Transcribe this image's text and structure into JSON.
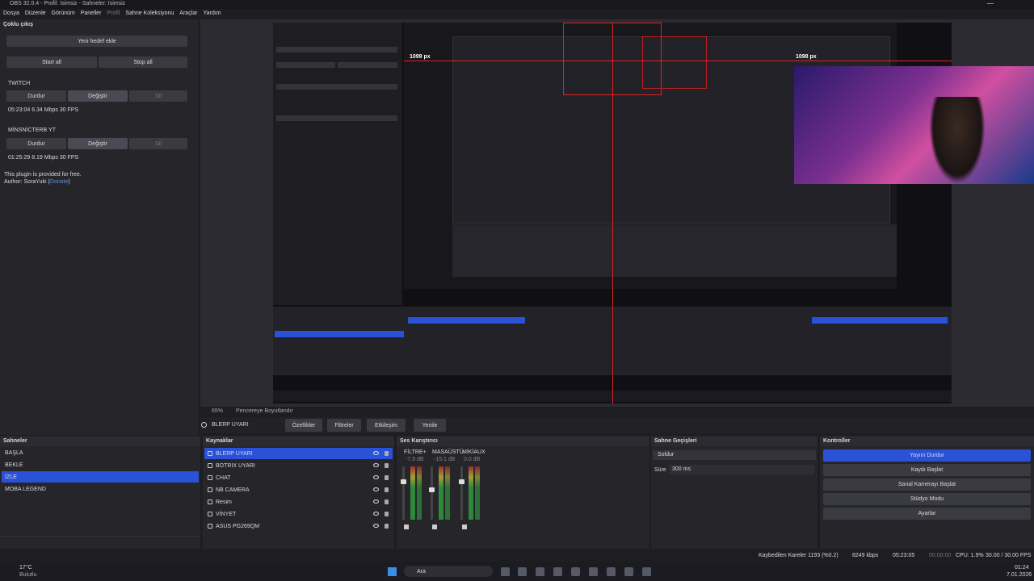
{
  "window": {
    "title": "OBS 32.0.4 - Profil: İsimsiz - Sahneler: İsimsiz"
  },
  "menu": [
    "Dosya",
    "Düzenle",
    "Görünüm",
    "Paneller",
    "Profil",
    "Sahne Koleksiyonu",
    "Araçlar",
    "Yardım"
  ],
  "multi_output": {
    "title": "Çoklu çıkış",
    "add_button": "Yeni hedef ekle",
    "start_all": "Start all",
    "stop_all": "Stop all",
    "targets": [
      {
        "name": "TWITCH",
        "buttons": [
          "Durdur",
          "Değiştir",
          "Sil"
        ],
        "status": "05:23:04 6.34 Mbps 30 FPS"
      },
      {
        "name": "MİNSNİCTERB YT",
        "buttons": [
          "Durdur",
          "Değiştir",
          "Sil"
        ],
        "status": "01:25:29 8.19 Mbps 30 FPS"
      }
    ],
    "note": "This plugin is provided for free.",
    "author": "Author: SoraYuki (",
    "donate": "Donate",
    "author_end": ")"
  },
  "preview": {
    "guides": [
      "1099 px",
      "1098 px"
    ],
    "zoom": "65%",
    "fit": "Pencereye Boyutlandır"
  },
  "source_toolbar": {
    "source": "BLERP UYARI",
    "buttons": [
      "Özellikler",
      "Filtreler",
      "Etkileşim",
      "Yenile"
    ]
  },
  "scenes": {
    "title": "Sahneler",
    "items": [
      "BAŞLA",
      "BEKLE",
      "İZLE",
      "MOBA LEGEND"
    ]
  },
  "sources": {
    "title": "Kaynaklar",
    "items": [
      "BLERP UYARI",
      "BOTRIX UYARI",
      "CHAT",
      "NB CAMERA",
      "Resim",
      "VİNYET",
      "ASUS PG269QM"
    ]
  },
  "mixer": {
    "title": "Ses Karıştırıcı",
    "channels": [
      {
        "name": "FİLTRE+",
        "level": "-7.9 dB"
      },
      {
        "name": "MASAÜSTÜ",
        "level": "-15.1 dB"
      },
      {
        "name": "MİKİAUX",
        "level": "0.0 dB"
      }
    ]
  },
  "transitions": {
    "title": "Sahne Geçişleri",
    "transition": "Soldur",
    "duration_label": "Süre",
    "duration": "300 ms"
  },
  "controls": {
    "title": "Kontroller",
    "buttons": [
      "Yayını Durdur",
      "Kaydı Başlat",
      "Sanal Kamerayı Başlat",
      "Stüdyo Modu",
      "Ayarlar"
    ]
  },
  "status": {
    "dropped": "Kaybedilen Kareler 1193 (%0.2)",
    "bitrate": "8249 kbps",
    "stream_time": "05:23:05",
    "record_time": "00:00:00",
    "cpu": "CPU: 1.9%",
    "fps": "30.00 / 30.00 FPS"
  },
  "taskbar": {
    "weather_temp": "17°C",
    "weather": "Bulutlu",
    "search": "Ara",
    "time": "01:24",
    "date": "7.01.2026"
  }
}
